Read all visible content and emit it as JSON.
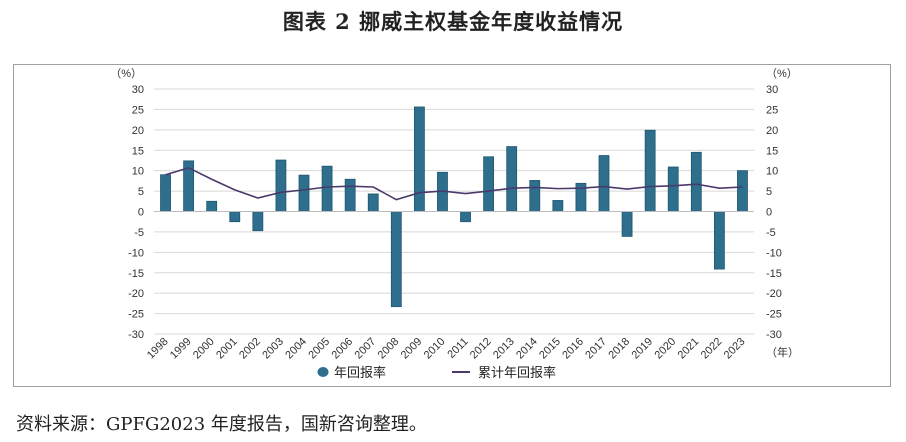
{
  "title": "图表 2  挪威主权基金年度收益情况",
  "source": "资料来源：GPFG2023 年度报告，国新咨询整理。",
  "chart_data": {
    "type": "bar",
    "categories": [
      "1998",
      "1999",
      "2000",
      "2001",
      "2002",
      "2003",
      "2004",
      "2005",
      "2006",
      "2007",
      "2008",
      "2009",
      "2010",
      "2011",
      "2012",
      "2013",
      "2014",
      "2015",
      "2016",
      "2017",
      "2018",
      "2019",
      "2020",
      "2021",
      "2022",
      "2023"
    ],
    "series": [
      {
        "name": "年回报率",
        "type": "bar",
        "color": "#2e6f8e",
        "values": [
          9.0,
          12.4,
          2.5,
          -2.5,
          -4.7,
          12.6,
          8.9,
          11.1,
          7.9,
          4.3,
          -23.3,
          25.6,
          9.6,
          -2.5,
          13.4,
          15.9,
          7.6,
          2.7,
          6.9,
          13.7,
          -6.1,
          19.9,
          10.9,
          14.5,
          -14.1,
          10.0
        ]
      },
      {
        "name": "累计年回报率",
        "type": "line",
        "color": "#4a3a6b",
        "values": [
          9.0,
          10.7,
          7.9,
          5.3,
          3.3,
          4.7,
          5.3,
          6.0,
          6.2,
          6.0,
          2.9,
          4.6,
          5.0,
          4.4,
          5.0,
          5.7,
          5.9,
          5.6,
          5.7,
          6.1,
          5.5,
          6.1,
          6.3,
          6.7,
          5.7,
          6.0
        ]
      }
    ],
    "y_unit_left": "（%）",
    "y_unit_right": "（%）",
    "x_unit": "（年）",
    "yticks": [
      "30",
      "25",
      "20",
      "15",
      "10",
      "5",
      "0",
      "-5",
      "-10",
      "-15",
      "-20",
      "-25",
      "-30"
    ],
    "ylim": [
      -30,
      30
    ],
    "grid": true,
    "legend_position": "bottom"
  }
}
